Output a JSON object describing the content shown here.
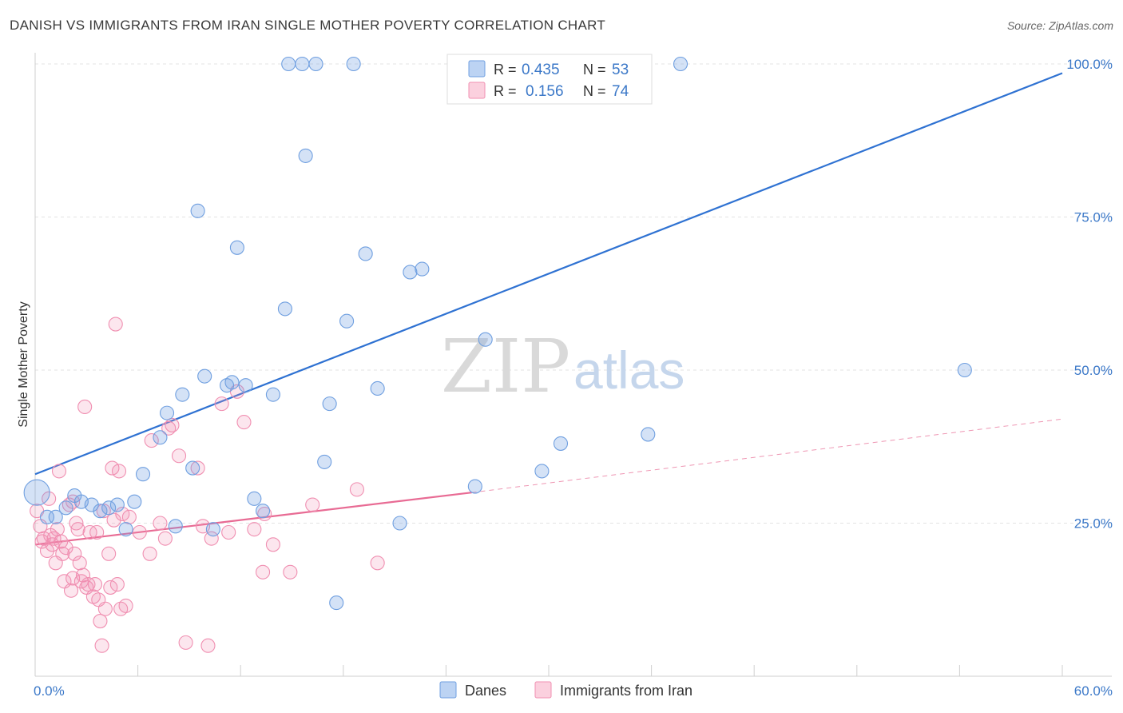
{
  "title": "DANISH VS IMMIGRANTS FROM IRAN SINGLE MOTHER POVERTY CORRELATION CHART",
  "source": "Source: ZipAtlas.com",
  "watermark": {
    "zip": "ZIP",
    "atlas": "atlas"
  },
  "legend": {
    "r_label": "R =",
    "n_label": "N =",
    "rows": [
      {
        "r": "0.435",
        "n": "53",
        "color": "#6f9fe0"
      },
      {
        "r": "0.156",
        "n": "74",
        "color": "#f08fb1"
      }
    ]
  },
  "bottom_legend": [
    "Danes",
    "Immigrants from Iran"
  ],
  "chart_data": {
    "type": "scatter",
    "title": "DANISH VS IMMIGRANTS FROM IRAN SINGLE MOTHER POVERTY CORRELATION CHART",
    "xlabel": "",
    "ylabel": "Single Mother Poverty",
    "xlim": [
      0,
      60
    ],
    "ylim": [
      0,
      100
    ],
    "x_tick_labels": [
      "0.0%",
      "60.0%"
    ],
    "y_tick_labels": [
      "25.0%",
      "50.0%",
      "75.0%",
      "100.0%"
    ],
    "y_ticks": [
      25,
      50,
      75,
      100
    ],
    "grid": true,
    "legend_position": "top-center",
    "series": [
      {
        "name": "Danes",
        "color": "#6f9fe0",
        "line_color": "#2f72d2",
        "trend": {
          "x": [
            0,
            60
          ],
          "y": [
            33.0,
            98.5
          ],
          "dashed_from": null
        },
        "points": [
          [
            0.1,
            30.0
          ],
          [
            0.7,
            26.0
          ],
          [
            1.2,
            26.0
          ],
          [
            1.8,
            27.5
          ],
          [
            2.3,
            29.5
          ],
          [
            2.7,
            28.5
          ],
          [
            3.3,
            28.0
          ],
          [
            3.8,
            27.0
          ],
          [
            4.3,
            27.5
          ],
          [
            4.8,
            28.0
          ],
          [
            5.3,
            24.0
          ],
          [
            5.8,
            28.5
          ],
          [
            6.3,
            33.0
          ],
          [
            7.3,
            39.0
          ],
          [
            7.7,
            43.0
          ],
          [
            8.2,
            24.5
          ],
          [
            8.6,
            46.0
          ],
          [
            9.2,
            34.0
          ],
          [
            9.5,
            76.0
          ],
          [
            9.9,
            49.0
          ],
          [
            10.4,
            24.0
          ],
          [
            11.2,
            47.5
          ],
          [
            11.5,
            48.0
          ],
          [
            11.8,
            70.0
          ],
          [
            12.3,
            47.5
          ],
          [
            12.8,
            29.0
          ],
          [
            13.3,
            27.0
          ],
          [
            13.9,
            46.0
          ],
          [
            14.6,
            60.0
          ],
          [
            14.8,
            100.0
          ],
          [
            15.6,
            100.0
          ],
          [
            15.8,
            85.0
          ],
          [
            16.4,
            100.0
          ],
          [
            16.9,
            35.0
          ],
          [
            17.2,
            44.5
          ],
          [
            17.6,
            12.0
          ],
          [
            18.2,
            58.0
          ],
          [
            18.6,
            100.0
          ],
          [
            19.3,
            69.0
          ],
          [
            20.0,
            47.0
          ],
          [
            21.3,
            25.0
          ],
          [
            21.9,
            66.0
          ],
          [
            22.6,
            66.5
          ],
          [
            25.0,
            100.0
          ],
          [
            25.7,
            31.0
          ],
          [
            26.3,
            55.0
          ],
          [
            28.9,
            100.0
          ],
          [
            29.6,
            33.5
          ],
          [
            30.7,
            38.0
          ],
          [
            35.8,
            39.5
          ],
          [
            37.7,
            100.0
          ],
          [
            54.3,
            50.0
          ],
          [
            26.8,
            100.0
          ]
        ]
      },
      {
        "name": "Immigrants from Iran",
        "color": "#f08fb1",
        "line_color": "#e86b94",
        "trend": {
          "x": [
            0,
            25.5
          ],
          "y": [
            21.5,
            30.0
          ],
          "dashed_to": [
            60,
            42.0
          ]
        },
        "points": [
          [
            0.1,
            27.0
          ],
          [
            0.3,
            24.5
          ],
          [
            0.5,
            22.5
          ],
          [
            0.7,
            20.5
          ],
          [
            0.9,
            23.0
          ],
          [
            1.0,
            21.5
          ],
          [
            1.2,
            18.5
          ],
          [
            1.3,
            24.0
          ],
          [
            1.4,
            33.5
          ],
          [
            1.5,
            22.0
          ],
          [
            1.6,
            20.0
          ],
          [
            1.7,
            15.5
          ],
          [
            1.8,
            21.0
          ],
          [
            2.0,
            28.0
          ],
          [
            2.1,
            14.0
          ],
          [
            2.2,
            16.0
          ],
          [
            2.3,
            20.0
          ],
          [
            2.4,
            25.0
          ],
          [
            2.5,
            24.0
          ],
          [
            2.6,
            18.5
          ],
          [
            2.7,
            15.5
          ],
          [
            2.8,
            16.5
          ],
          [
            2.9,
            44.0
          ],
          [
            3.0,
            14.5
          ],
          [
            3.2,
            23.5
          ],
          [
            3.4,
            13.0
          ],
          [
            3.5,
            15.0
          ],
          [
            3.6,
            23.5
          ],
          [
            3.7,
            12.5
          ],
          [
            3.8,
            9.0
          ],
          [
            3.9,
            5.0
          ],
          [
            4.0,
            27.0
          ],
          [
            4.1,
            11.0
          ],
          [
            4.3,
            20.0
          ],
          [
            4.4,
            14.5
          ],
          [
            4.5,
            34.0
          ],
          [
            4.6,
            25.5
          ],
          [
            4.7,
            57.5
          ],
          [
            4.8,
            15.0
          ],
          [
            4.9,
            33.5
          ],
          [
            5.0,
            11.0
          ],
          [
            5.3,
            11.5
          ],
          [
            5.5,
            26.0
          ],
          [
            6.1,
            23.5
          ],
          [
            6.7,
            20.0
          ],
          [
            6.8,
            38.5
          ],
          [
            7.3,
            25.0
          ],
          [
            7.6,
            22.5
          ],
          [
            7.8,
            40.5
          ],
          [
            8.0,
            41.0
          ],
          [
            8.4,
            36.0
          ],
          [
            8.8,
            5.5
          ],
          [
            9.5,
            34.0
          ],
          [
            9.8,
            24.5
          ],
          [
            10.1,
            5.0
          ],
          [
            10.3,
            22.5
          ],
          [
            10.9,
            44.5
          ],
          [
            11.8,
            46.5
          ],
          [
            11.3,
            23.5
          ],
          [
            12.2,
            41.5
          ],
          [
            12.8,
            24.0
          ],
          [
            13.3,
            17.0
          ],
          [
            13.4,
            26.5
          ],
          [
            13.9,
            21.5
          ],
          [
            14.9,
            17.0
          ],
          [
            16.2,
            28.0
          ],
          [
            18.8,
            30.5
          ],
          [
            20.0,
            18.5
          ],
          [
            0.4,
            22.0
          ],
          [
            1.1,
            22.5
          ],
          [
            2.2,
            28.5
          ],
          [
            3.1,
            15.0
          ],
          [
            0.8,
            29.0
          ],
          [
            5.1,
            26.5
          ]
        ]
      }
    ]
  }
}
